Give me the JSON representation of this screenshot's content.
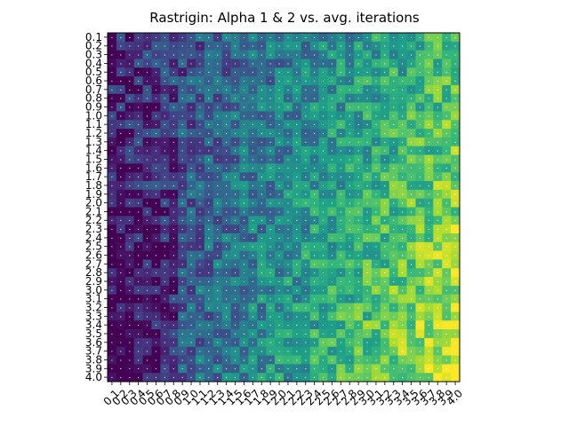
{
  "chart_data": {
    "type": "heatmap",
    "title": "Rastrigin: Alpha 1 & 2 vs. avg. iterations",
    "xlabel": "",
    "ylabel": "",
    "x_ticks": [
      "0.1",
      "0.2",
      "0.3",
      "0.4",
      "0.5",
      "0.6",
      "0.7",
      "0.8",
      "0.9",
      "1.0",
      "1.1",
      "1.2",
      "1.3",
      "1.4",
      "1.5",
      "1.6",
      "1.7",
      "1.8",
      "1.9",
      "2.0",
      "2.1",
      "2.2",
      "2.3",
      "2.4",
      "2.5",
      "2.6",
      "2.7",
      "2.8",
      "2.9",
      "3.0",
      "3.1",
      "3.2",
      "3.3",
      "3.4",
      "3.5",
      "3.6",
      "3.7",
      "3.8",
      "3.9",
      "4.0"
    ],
    "y_ticks": [
      "0.1",
      "0.2",
      "0.3",
      "0.4",
      "0.5",
      "0.6",
      "0.7",
      "0.8",
      "0.9",
      "1.0",
      "1.1",
      "1.2",
      "1.3",
      "1.4",
      "1.5",
      "1.6",
      "1.7",
      "1.8",
      "1.9",
      "2.0",
      "2.1",
      "2.2",
      "2.3",
      "2.4",
      "2.5",
      "2.6",
      "2.7",
      "2.8",
      "2.9",
      "3.0",
      "3.1",
      "3.2",
      "3.3",
      "3.4",
      "3.5",
      "3.6",
      "3.7",
      "3.8",
      "3.9",
      "4.0"
    ],
    "colormap": "viridis",
    "annotated": true,
    "grid": false,
    "legend": "none"
  }
}
